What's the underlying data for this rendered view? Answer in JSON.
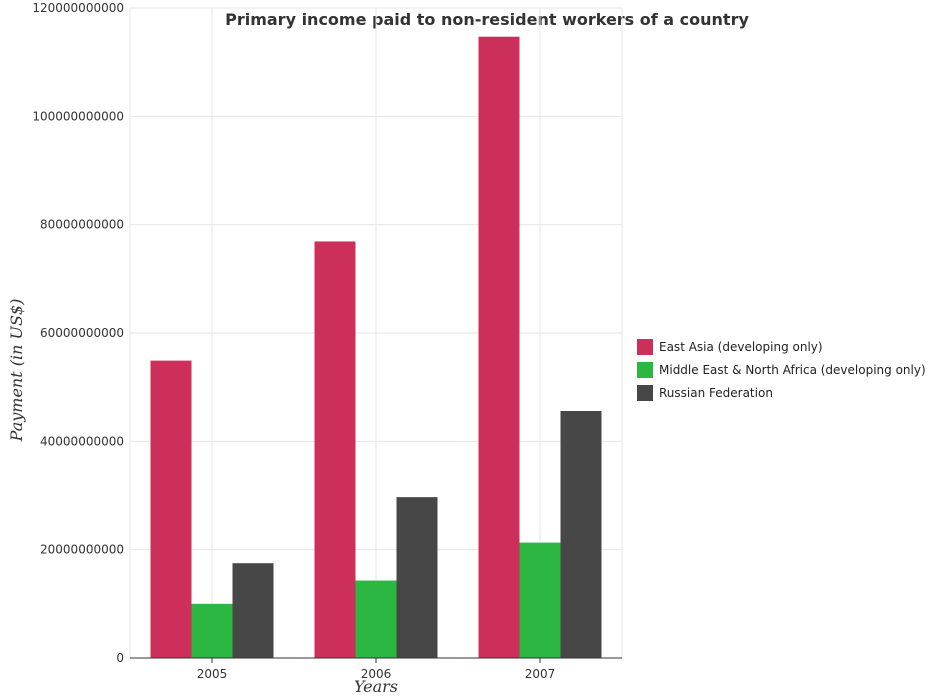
{
  "colors": {
    "East Asia (developing only)": "#cc2f5a",
    "Middle East & North Africa (developing only)": "#2cb742",
    "Russian Federation": "#474747"
  },
  "chart_data": {
    "type": "bar",
    "title": "Primary income paid to non-resident workers of a country",
    "xlabel": "Years",
    "ylabel": "Payment (in US$)",
    "categories": [
      "2005",
      "2006",
      "2007"
    ],
    "ylim": [
      0,
      120000000000
    ],
    "yticks": [
      0,
      20000000000,
      40000000000,
      60000000000,
      80000000000,
      100000000000,
      120000000000
    ],
    "ytick_labels": [
      "0",
      "20000000000",
      "40000000000",
      "60000000000",
      "80000000000",
      "100000000000",
      "120000000000"
    ],
    "grid": true,
    "legend_position": "right",
    "series": [
      {
        "name": "East Asia (developing only)",
        "values": [
          54900000000,
          76900000000,
          114700000000
        ]
      },
      {
        "name": "Middle East & North Africa (developing only)",
        "values": [
          10000000000,
          14300000000,
          21300000000
        ]
      },
      {
        "name": "Russian Federation",
        "values": [
          17500000000,
          29700000000,
          45600000000
        ]
      }
    ]
  }
}
